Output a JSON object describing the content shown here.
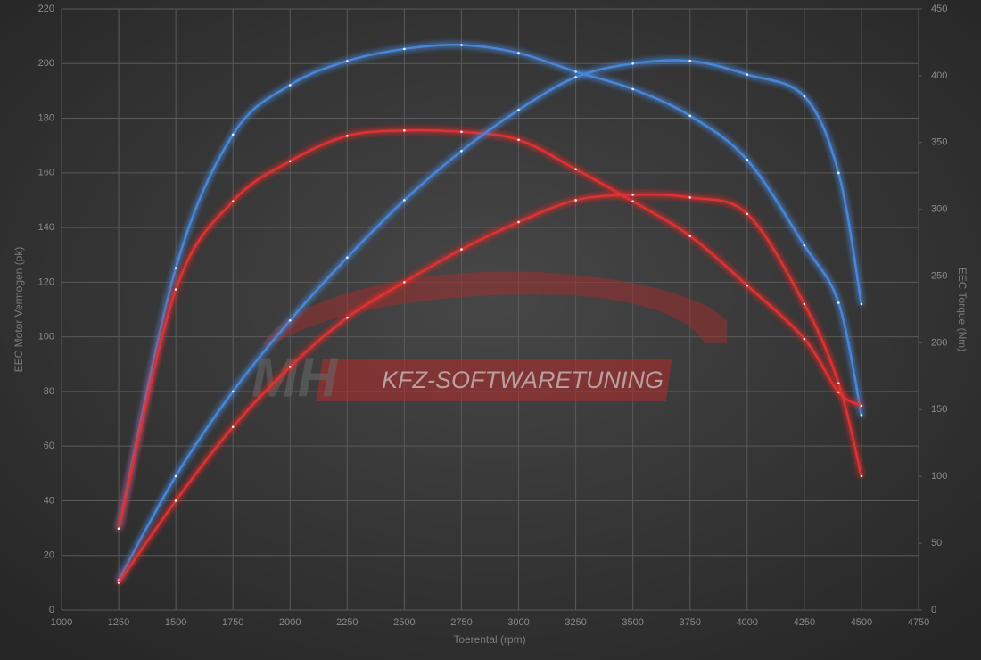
{
  "chart_data": {
    "type": "line",
    "xlabel": "Toerental (rpm)",
    "ylabel": "EEC Motor Vermogen (pk)",
    "y2label": "EEC Torque (Nm)",
    "watermark": [
      "MH",
      "KFZ-SOFTWARETUNING"
    ],
    "x": [
      1250,
      1500,
      1750,
      2000,
      2250,
      2500,
      2750,
      3000,
      3250,
      3500,
      3750,
      4000,
      4250,
      4400,
      4500
    ],
    "series": [
      {
        "color": "#4a86d8",
        "axis": "y2",
        "values": [
          61,
          256,
          356,
          393,
          411,
          420,
          423,
          417,
          403,
          390,
          370,
          337,
          273,
          230,
          146
        ]
      },
      {
        "color": "#e03030",
        "axis": "y2",
        "values": [
          61,
          240,
          306,
          336,
          355,
          359,
          358,
          352,
          330,
          306,
          280,
          243,
          203,
          163,
          153
        ]
      },
      {
        "color": "#4a86d8",
        "values": [
          11,
          49,
          80,
          106,
          129,
          150,
          168,
          183,
          195,
          200,
          201,
          196,
          188,
          160,
          112
        ]
      },
      {
        "color": "#e03030",
        "values": [
          10,
          40,
          67,
          89,
          107,
          120,
          132,
          142,
          150,
          152,
          151,
          145,
          112,
          83,
          49
        ]
      }
    ],
    "xlim": [
      1000,
      4750
    ],
    "xticks": [
      1000,
      1250,
      1500,
      1750,
      2000,
      2250,
      2500,
      2750,
      3000,
      3250,
      3500,
      3750,
      4000,
      4250,
      4500,
      4750
    ],
    "ylim": [
      0,
      220
    ],
    "yticks": [
      0,
      20,
      40,
      60,
      80,
      100,
      120,
      140,
      160,
      180,
      200,
      220
    ],
    "y2lim": [
      0,
      450
    ],
    "y2ticks": [
      0,
      50,
      100,
      150,
      200,
      250,
      300,
      350,
      400,
      450
    ],
    "grid": true
  }
}
